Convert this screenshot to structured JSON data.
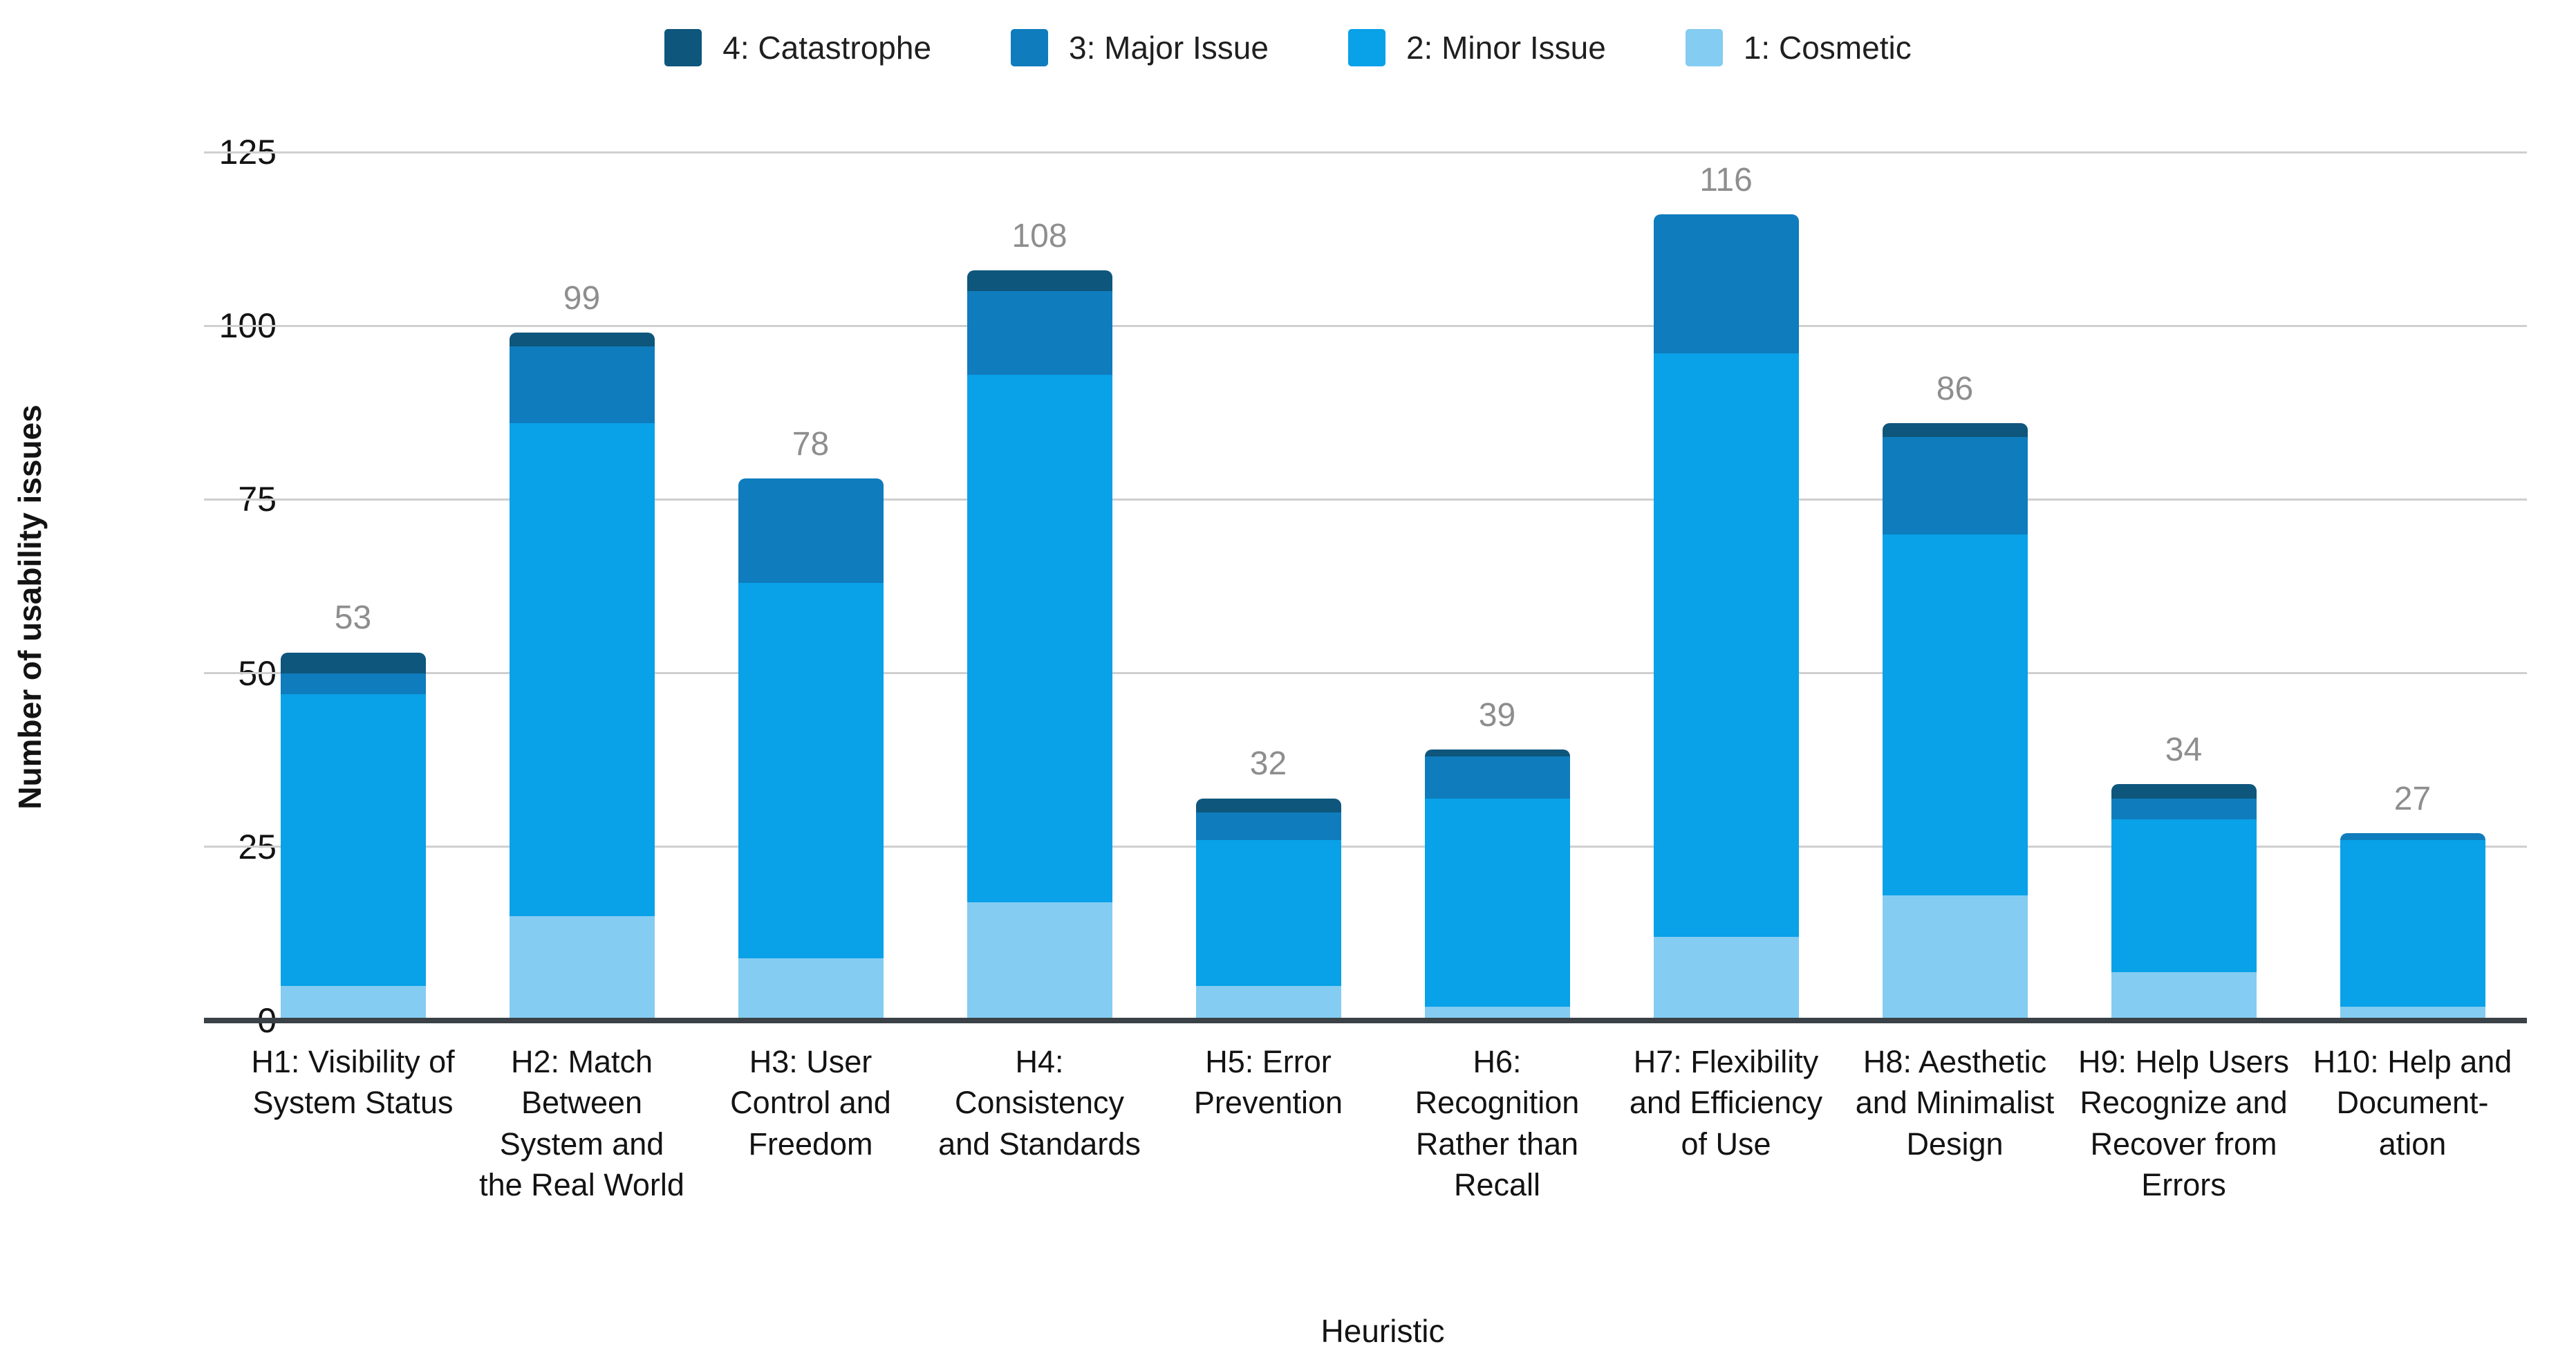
{
  "page": {
    "background": "#ffffff"
  },
  "legend": {
    "position": "top",
    "items": [
      {
        "label": "4: Catastrophe",
        "color": "#0e567c"
      },
      {
        "label": "3: Major Issue",
        "color": "#0f7cbd"
      },
      {
        "label": "2: Minor Issue",
        "color": "#09a1e8"
      },
      {
        "label": "1: Cosmetic",
        "color": "#84ccf1"
      }
    ]
  },
  "y_axis": {
    "title": "Number of usability issues",
    "ticks": [
      0,
      25,
      50,
      75,
      100,
      125
    ]
  },
  "x_axis": {
    "title": "Heuristic"
  },
  "chart_data": {
    "type": "bar",
    "stacked": true,
    "xlabel": "Heuristic",
    "ylabel": "Number of usability issues",
    "ylim": [
      0,
      125
    ],
    "yticks": [
      0,
      25,
      50,
      75,
      100,
      125
    ],
    "grid": true,
    "legend_position": "top",
    "categories": [
      "H1: Visibility of System Status",
      "H2: Match Between System and the Real World",
      "H3: User Control and Freedom",
      "H4: Consistency and Standards",
      "H5: Error Prevention",
      "H6: Recognition Rather than Recall",
      "H7: Flexibility and Efficiency of Use",
      "H8: Aesthetic and Minimalist Design",
      "H9: Help Users Recognize and Recover from Errors",
      "H10: Help and Document- ation"
    ],
    "totals": [
      53,
      99,
      78,
      108,
      32,
      39,
      116,
      86,
      34,
      27
    ],
    "series": [
      {
        "name": "1: Cosmetic",
        "color": "#84ccf1",
        "values": [
          5,
          15,
          9,
          17,
          5,
          2,
          12,
          18,
          7,
          2
        ]
      },
      {
        "name": "2: Minor Issue",
        "color": "#09a1e8",
        "values": [
          42,
          71,
          54,
          76,
          21,
          30,
          84,
          52,
          22,
          24
        ]
      },
      {
        "name": "3: Major Issue",
        "color": "#0f7cbd",
        "values": [
          3,
          11,
          15,
          12,
          4,
          6,
          20,
          14,
          3,
          1
        ]
      },
      {
        "name": "4: Catastrophe",
        "color": "#0e567c",
        "values": [
          3,
          2,
          0,
          3,
          2,
          1,
          0,
          2,
          2,
          0
        ]
      }
    ],
    "total_label_color": "#8e8e8e",
    "gridline_color": "#cfcfcf",
    "baseline_color": "#3a4147"
  }
}
